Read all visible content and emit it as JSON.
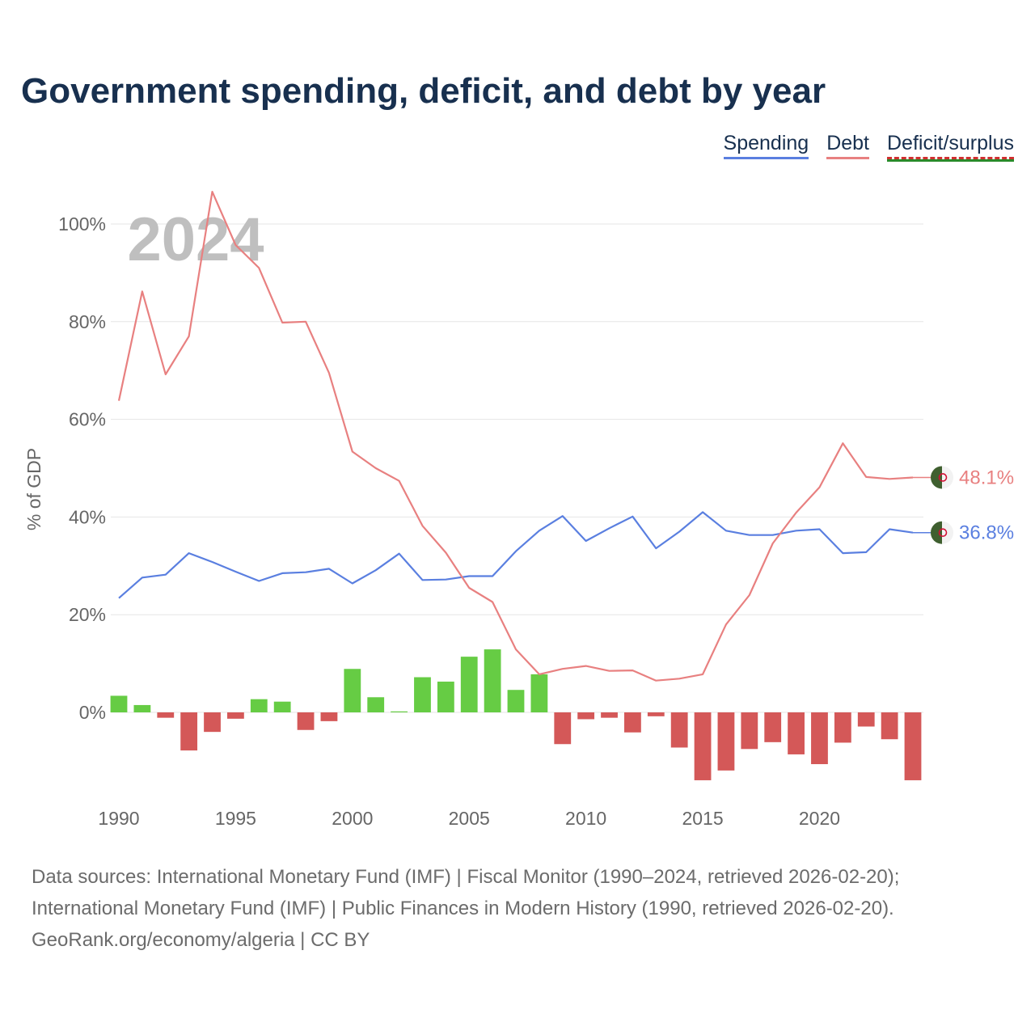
{
  "title": "Government spending, deficit, and debt by year",
  "legend": {
    "spending": "Spending",
    "debt": "Debt",
    "deficit": "Deficit/surplus"
  },
  "colors": {
    "spending": "#5a7fe0",
    "debt": "#e88080",
    "surplus": "#66cc44",
    "deficit": "#d45858",
    "grid": "#e6e6e6",
    "axis_text": "#666666",
    "year_watermark": "#bfbfbf"
  },
  "chart_data": {
    "type": "line+bar",
    "year_label": "2024",
    "ylabel": "% of GDP",
    "ylim": [
      -18,
      108
    ],
    "yticks": [
      0,
      20,
      40,
      60,
      80,
      100
    ],
    "ytick_labels": [
      "0%",
      "20%",
      "40%",
      "60%",
      "80%",
      "100%"
    ],
    "xticks": [
      1990,
      1995,
      2000,
      2005,
      2010,
      2015,
      2020
    ],
    "years": [
      1990,
      1991,
      1992,
      1993,
      1994,
      1995,
      1996,
      1997,
      1998,
      1999,
      2000,
      2001,
      2002,
      2003,
      2004,
      2005,
      2006,
      2007,
      2008,
      2009,
      2010,
      2011,
      2012,
      2013,
      2014,
      2015,
      2016,
      2017,
      2018,
      2019,
      2020,
      2021,
      2022,
      2023,
      2024
    ],
    "series": [
      {
        "name": "Spending",
        "values": [
          23.4,
          27.6,
          28.2,
          32.6,
          30.8,
          28.8,
          26.9,
          28.5,
          28.7,
          29.4,
          26.4,
          29.1,
          32.5,
          27.1,
          27.2,
          27.9,
          27.9,
          33.0,
          37.2,
          40.2,
          35.1,
          37.7,
          40.1,
          33.6,
          37.0,
          41.0,
          37.2,
          36.3,
          36.3,
          37.2,
          37.5,
          32.6,
          32.8,
          37.5,
          36.8
        ]
      },
      {
        "name": "Debt",
        "values": [
          63.8,
          86.2,
          69.2,
          77.0,
          106.6,
          95.7,
          91.0,
          79.8,
          80.0,
          69.5,
          53.4,
          50.0,
          47.4,
          38.2,
          32.7,
          25.5,
          22.6,
          12.9,
          7.8,
          8.9,
          9.5,
          8.5,
          8.6,
          6.5,
          6.9,
          7.8,
          18.0,
          24.0,
          34.6,
          40.9,
          46.1,
          55.1,
          48.2,
          47.8,
          48.1
        ]
      },
      {
        "name": "Deficit/surplus",
        "values": [
          3.4,
          1.5,
          -1.1,
          -7.8,
          -4.0,
          -1.3,
          2.7,
          2.2,
          -3.6,
          -1.8,
          8.9,
          3.1,
          0.2,
          7.2,
          6.3,
          11.4,
          12.9,
          4.6,
          7.8,
          -6.5,
          -1.4,
          -1.1,
          -4.1,
          -0.8,
          -7.2,
          -13.9,
          -11.9,
          -7.5,
          -6.1,
          -8.6,
          -10.6,
          -6.2,
          -2.9,
          -5.5,
          -13.9
        ]
      }
    ],
    "end_labels": {
      "debt": "48.1%",
      "spending": "36.8%"
    }
  },
  "footer": {
    "line1": "Data sources: International Monetary Fund (IMF) | Fiscal Monitor (1990–2024, retrieved 2026-02-20);",
    "line2": "International Monetary Fund (IMF) | Public Finances in Modern History (1990, retrieved 2026-02-20).",
    "line3": "GeoRank.org/economy/algeria | CC BY"
  }
}
